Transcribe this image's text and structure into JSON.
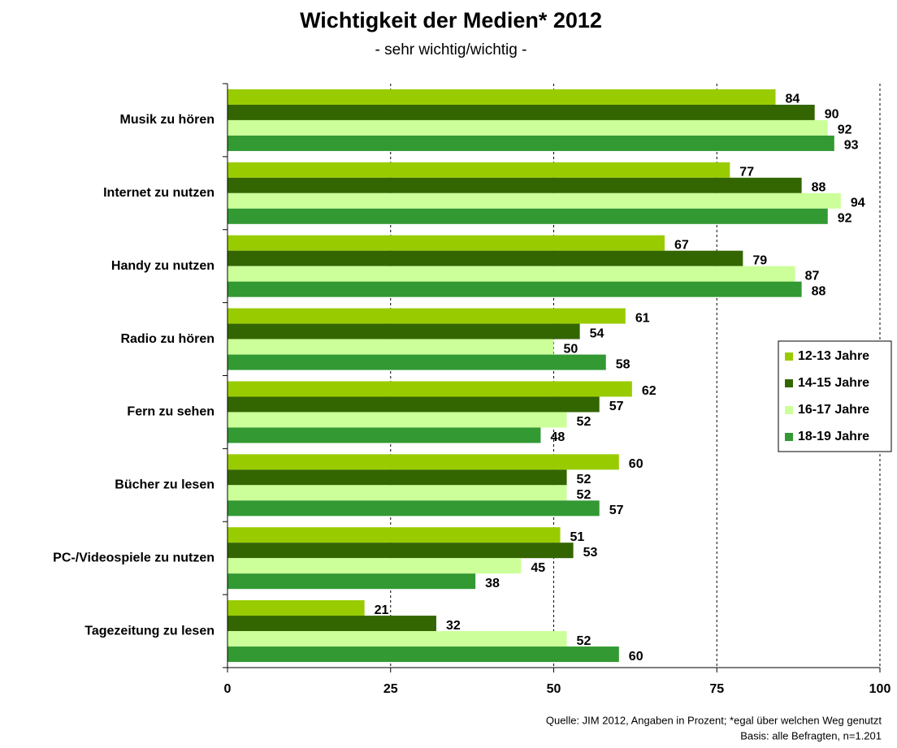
{
  "chart_data": {
    "type": "bar",
    "orientation": "horizontal",
    "title": "Wichtigkeit der Medien* 2012",
    "subtitle": "- sehr wichtig/wichtig -",
    "categories": [
      "Musik zu hören",
      "Internet zu nutzen",
      "Handy zu nutzen",
      "Radio zu hören",
      "Fern zu sehen",
      "Bücher zu lesen",
      "PC-/Videospiele zu nutzen",
      "Tagezeitung zu lesen"
    ],
    "series": [
      {
        "name": "12-13 Jahre",
        "color": "#99cc00",
        "values": [
          84,
          77,
          67,
          61,
          62,
          60,
          51,
          21
        ]
      },
      {
        "name": "14-15 Jahre",
        "color": "#336600",
        "values": [
          90,
          88,
          79,
          54,
          57,
          52,
          53,
          32
        ]
      },
      {
        "name": "16-17 Jahre",
        "color": "#ccff99",
        "values": [
          92,
          94,
          87,
          50,
          52,
          52,
          45,
          52
        ]
      },
      {
        "name": "18-19 Jahre",
        "color": "#339933",
        "values": [
          93,
          92,
          88,
          58,
          48,
          57,
          38,
          60
        ]
      }
    ],
    "xlim": [
      0,
      100
    ],
    "xticks": [
      0,
      25,
      50,
      75,
      100
    ],
    "grid": true,
    "legend": "right",
    "notes": [
      "Quelle: JIM 2012, Angaben in Prozent; *egal über welchen Weg genutzt",
      "Basis: alle Befragten, n=1.201"
    ]
  }
}
